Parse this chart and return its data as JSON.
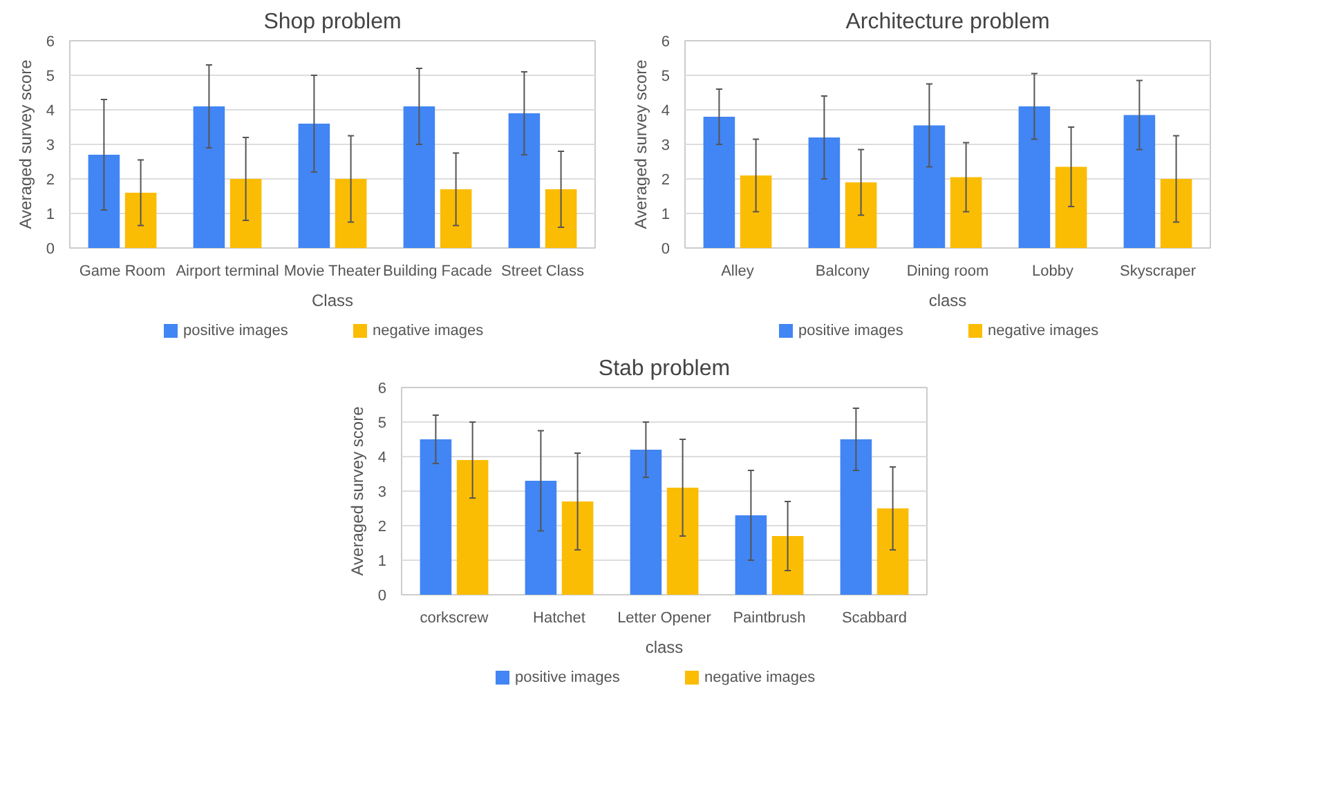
{
  "chart_data": [
    {
      "type": "bar",
      "title": "Shop problem",
      "xlabel": "Class",
      "ylabel": "Averaged survey score",
      "categories": [
        "Game Room",
        "Airport terminal",
        "Movie Theater",
        "Building Facade",
        "Street Class"
      ],
      "ylim": [
        0,
        6
      ],
      "yticks": [
        0,
        1,
        2,
        3,
        4,
        5,
        6
      ],
      "grid": "y",
      "legend": "bottom",
      "series": [
        {
          "name": "positive images",
          "color": "#4285f4",
          "values": [
            2.7,
            4.1,
            3.6,
            4.1,
            3.9
          ],
          "errors": [
            1.6,
            1.2,
            1.4,
            1.1,
            1.2
          ]
        },
        {
          "name": "negative images",
          "color": "#fbbc04",
          "values": [
            1.6,
            2.0,
            2.0,
            1.7,
            1.7
          ],
          "errors": [
            0.95,
            1.2,
            1.25,
            1.05,
            1.1
          ]
        }
      ]
    },
    {
      "type": "bar",
      "title": "Architecture problem",
      "xlabel": "class",
      "ylabel": "Averaged survey score",
      "categories": [
        "Alley",
        "Balcony",
        "Dining room",
        "Lobby",
        "Skyscraper"
      ],
      "ylim": [
        0,
        6
      ],
      "yticks": [
        0,
        1,
        2,
        3,
        4,
        5,
        6
      ],
      "grid": "y",
      "legend": "bottom",
      "series": [
        {
          "name": "positive images",
          "color": "#4285f4",
          "values": [
            3.8,
            3.2,
            3.55,
            4.1,
            3.85
          ],
          "errors": [
            0.8,
            1.2,
            1.2,
            0.95,
            1.0
          ]
        },
        {
          "name": "negative images",
          "color": "#fbbc04",
          "values": [
            2.1,
            1.9,
            2.05,
            2.35,
            2.0
          ],
          "errors": [
            1.05,
            0.95,
            1.0,
            1.15,
            1.25
          ]
        }
      ]
    },
    {
      "type": "bar",
      "title": "Stab problem",
      "xlabel": "class",
      "ylabel": "Averaged survey score",
      "categories": [
        "corkscrew",
        "Hatchet",
        "Letter Opener",
        "Paintbrush",
        "Scabbard"
      ],
      "ylim": [
        0,
        6
      ],
      "yticks": [
        0,
        1,
        2,
        3,
        4,
        5,
        6
      ],
      "grid": "y",
      "legend": "bottom",
      "series": [
        {
          "name": "positive images",
          "color": "#4285f4",
          "values": [
            4.5,
            3.3,
            4.2,
            2.3,
            4.5
          ],
          "errors": [
            0.7,
            1.45,
            0.8,
            1.3,
            0.9
          ]
        },
        {
          "name": "negative images",
          "color": "#fbbc04",
          "values": [
            3.9,
            2.7,
            3.1,
            1.7,
            2.5
          ],
          "errors": [
            1.1,
            1.4,
            1.4,
            1.0,
            1.2
          ]
        }
      ]
    }
  ]
}
